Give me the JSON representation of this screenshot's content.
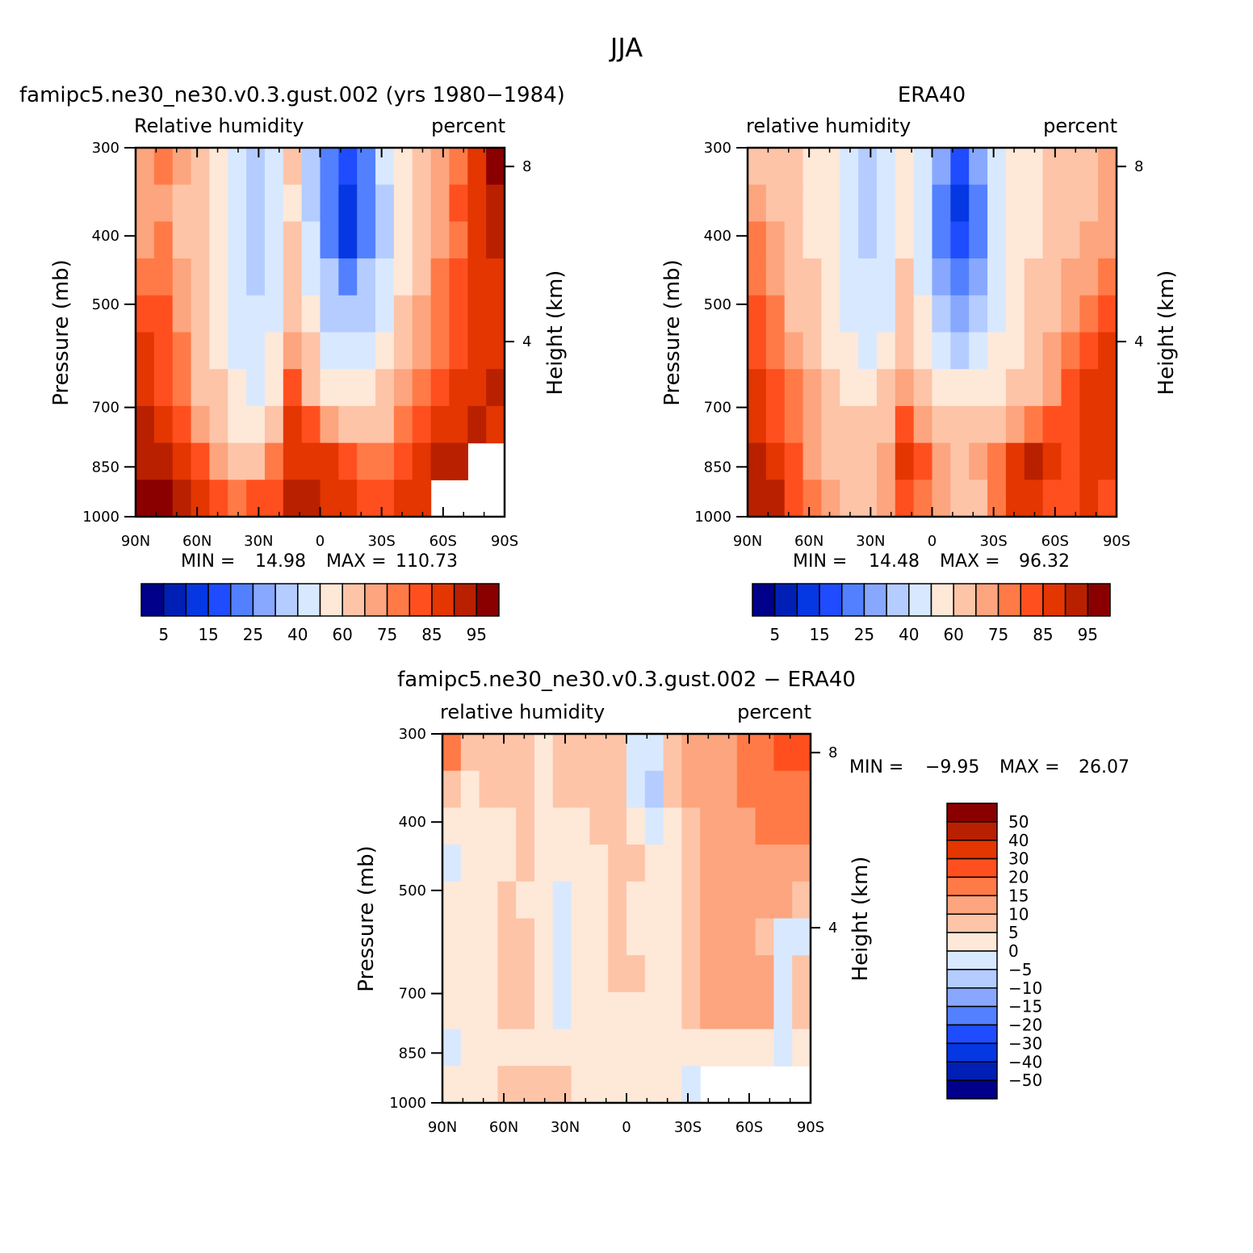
{
  "figure_title": "JJA",
  "chart_data": [
    {
      "id": "model",
      "type": "heatmap",
      "title": "famipc5.ne30_ne30.v0.3.gust.002 (yrs 1980−1984)",
      "left_label": "Relative humidity",
      "right_label": "percent",
      "xlabel": "",
      "ylabel": "Pressure (mb)",
      "y2label": "Height (km)",
      "x_ticks": [
        "90N",
        "60N",
        "30N",
        "0",
        "30S",
        "60S",
        "90S"
      ],
      "y_ticks": [
        300,
        400,
        500,
        700,
        850,
        1000
      ],
      "y2_ticks": [
        8,
        4
      ],
      "y_scale": "log",
      "stats": {
        "min_label": "MIN =",
        "min": "14.98",
        "max_label": "MAX =",
        "max": "110.73"
      },
      "grid": [
        [
          70,
          75,
          70,
          62,
          52,
          40,
          38,
          45,
          60,
          35,
          22,
          15,
          22,
          40,
          55,
          65,
          72,
          78,
          85,
          96
        ],
        [
          70,
          72,
          68,
          62,
          50,
          40,
          32,
          40,
          58,
          35,
          20,
          12,
          20,
          38,
          55,
          65,
          72,
          80,
          88,
          92
        ],
        [
          72,
          75,
          68,
          60,
          50,
          40,
          38,
          42,
          60,
          40,
          22,
          14,
          22,
          38,
          55,
          65,
          72,
          78,
          85,
          90
        ],
        [
          76,
          75,
          70,
          62,
          52,
          42,
          38,
          45,
          62,
          45,
          30,
          22,
          30,
          42,
          58,
          68,
          75,
          80,
          86,
          88
        ],
        [
          80,
          82,
          74,
          66,
          56,
          45,
          40,
          48,
          65,
          52,
          38,
          30,
          36,
          48,
          62,
          70,
          76,
          82,
          86,
          88
        ],
        [
          86,
          84,
          76,
          68,
          58,
          48,
          42,
          52,
          72,
          60,
          48,
          40,
          45,
          55,
          66,
          74,
          78,
          84,
          86,
          88
        ],
        [
          88,
          82,
          78,
          68,
          60,
          52,
          48,
          58,
          80,
          68,
          56,
          52,
          55,
          60,
          70,
          76,
          80,
          85,
          86,
          90
        ],
        [
          90,
          86,
          82,
          72,
          64,
          56,
          55,
          68,
          85,
          80,
          72,
          68,
          66,
          68,
          75,
          82,
          86,
          88,
          90,
          86
        ],
        [
          94,
          90,
          86,
          80,
          72,
          66,
          66,
          76,
          88,
          88,
          86,
          82,
          76,
          78,
          84,
          88,
          92,
          90,
          null,
          null
        ],
        [
          98,
          96,
          90,
          86,
          80,
          78,
          80,
          84,
          90,
          90,
          88,
          86,
          82,
          80,
          86,
          88,
          null,
          null,
          null,
          null
        ]
      ]
    },
    {
      "id": "obs",
      "type": "heatmap",
      "title": "ERA40",
      "left_label": "relative humidity",
      "right_label": "percent",
      "xlabel": "",
      "ylabel": "Pressure (mb)",
      "y2label": "Height (km)",
      "x_ticks": [
        "90N",
        "60N",
        "30N",
        "0",
        "30S",
        "60S",
        "90S"
      ],
      "y_ticks": [
        300,
        400,
        500,
        700,
        850,
        1000
      ],
      "y2_ticks": [
        8,
        4
      ],
      "y_scale": "log",
      "stats": {
        "min_label": "MIN =",
        "min": "14.48",
        "max_label": "MAX =",
        "max": "96.32"
      },
      "grid": [
        [
          62,
          62,
          60,
          58,
          52,
          45,
          38,
          40,
          55,
          42,
          25,
          18,
          28,
          45,
          52,
          58,
          62,
          66,
          68,
          70
        ],
        [
          72,
          68,
          62,
          58,
          52,
          42,
          35,
          40,
          56,
          40,
          22,
          14,
          24,
          42,
          52,
          58,
          62,
          66,
          68,
          70
        ],
        [
          76,
          70,
          64,
          58,
          52,
          42,
          38,
          42,
          58,
          42,
          24,
          15,
          24,
          42,
          52,
          58,
          64,
          68,
          70,
          72
        ],
        [
          78,
          72,
          66,
          60,
          54,
          44,
          40,
          45,
          60,
          45,
          28,
          20,
          28,
          44,
          54,
          60,
          66,
          70,
          74,
          76
        ],
        [
          80,
          76,
          68,
          62,
          56,
          46,
          42,
          48,
          62,
          50,
          34,
          28,
          32,
          46,
          56,
          62,
          68,
          72,
          78,
          80
        ],
        [
          82,
          78,
          72,
          66,
          58,
          50,
          46,
          52,
          66,
          56,
          42,
          38,
          40,
          50,
          58,
          64,
          70,
          76,
          82,
          86
        ],
        [
          86,
          82,
          76,
          70,
          62,
          56,
          54,
          60,
          72,
          64,
          54,
          50,
          52,
          56,
          62,
          68,
          74,
          80,
          88,
          88
        ],
        [
          88,
          84,
          78,
          72,
          66,
          62,
          62,
          68,
          80,
          74,
          66,
          62,
          62,
          66,
          72,
          78,
          82,
          84,
          88,
          86
        ],
        [
          92,
          86,
          80,
          74,
          68,
          66,
          66,
          72,
          86,
          80,
          72,
          66,
          70,
          76,
          86,
          90,
          86,
          82,
          88,
          86
        ],
        [
          94,
          90,
          84,
          78,
          72,
          68,
          68,
          72,
          82,
          78,
          70,
          62,
          68,
          76,
          86,
          88,
          84,
          80,
          86,
          84
        ]
      ]
    },
    {
      "id": "diff",
      "type": "heatmap",
      "title": "famipc5.ne30_ne30.v0.3.gust.002 − ERA40",
      "left_label": "relative humidity",
      "right_label": "percent",
      "xlabel": "",
      "ylabel": "Pressure (mb)",
      "y2label": "Height (km)",
      "x_ticks": [
        "90N",
        "60N",
        "30N",
        "0",
        "30S",
        "60S",
        "90S"
      ],
      "y_ticks": [
        300,
        400,
        500,
        700,
        850,
        1000
      ],
      "y2_ticks": [
        8,
        4
      ],
      "y_scale": "log",
      "stats": {
        "min_label": "MIN =",
        "min": "−9.95",
        "max_label": "MAX =",
        "max": "26.07"
      },
      "grid": [
        [
          16,
          8,
          6,
          6,
          6,
          4,
          6,
          6,
          6,
          6,
          -2,
          -2,
          6,
          10,
          12,
          14,
          16,
          18,
          20,
          22
        ],
        [
          6,
          4,
          6,
          6,
          6,
          4,
          6,
          6,
          6,
          6,
          -3,
          -6,
          6,
          12,
          12,
          14,
          16,
          18,
          18,
          18
        ],
        [
          2,
          2,
          2,
          4,
          6,
          4,
          2,
          2,
          6,
          8,
          2,
          -2,
          4,
          8,
          12,
          12,
          14,
          16,
          16,
          16
        ],
        [
          -1,
          2,
          2,
          4,
          6,
          4,
          2,
          2,
          4,
          8,
          6,
          2,
          4,
          8,
          12,
          12,
          14,
          14,
          14,
          14
        ],
        [
          0,
          2,
          2,
          6,
          4,
          2,
          -1,
          2,
          4,
          6,
          4,
          2,
          4,
          8,
          12,
          12,
          12,
          10,
          10,
          8
        ],
        [
          2,
          4,
          2,
          6,
          6,
          2,
          -2,
          2,
          4,
          6,
          4,
          2,
          2,
          8,
          12,
          12,
          12,
          8,
          -2,
          -2
        ],
        [
          2,
          4,
          2,
          6,
          6,
          2,
          -2,
          2,
          4,
          6,
          6,
          2,
          2,
          8,
          14,
          14,
          12,
          10,
          -2,
          6
        ],
        [
          2,
          4,
          2,
          6,
          6,
          0,
          -1,
          2,
          2,
          2,
          4,
          2,
          2,
          6,
          12,
          12,
          10,
          10,
          -2,
          6
        ],
        [
          -2,
          2,
          2,
          2,
          2,
          2,
          2,
          2,
          2,
          4,
          2,
          2,
          2,
          2,
          4,
          4,
          4,
          2,
          -2,
          2
        ],
        [
          2,
          2,
          2,
          6,
          8,
          8,
          8,
          4,
          2,
          2,
          2,
          2,
          2,
          -1,
          null,
          null,
          null,
          null,
          null,
          null
        ]
      ]
    }
  ],
  "colorbar_rh": {
    "colors": [
      "#00008b",
      "#0020b5",
      "#0537e3",
      "#1f4cff",
      "#5280ff",
      "#88a8ff",
      "#b4ccff",
      "#d8e9ff",
      "#fee8d8",
      "#fdc4a8",
      "#fca57e",
      "#ff7a47",
      "#ff4f1f",
      "#e33600",
      "#b82000",
      "#8a0000"
    ],
    "labels": [
      "5",
      "15",
      "25",
      "40",
      "60",
      "75",
      "85",
      "95"
    ]
  },
  "colorbar_diff": {
    "colors": [
      "#8a0000",
      "#b82000",
      "#e33600",
      "#ff4f1f",
      "#ff7a47",
      "#fca57e",
      "#fdc4a8",
      "#fee8d8",
      "#d8e9ff",
      "#b4ccff",
      "#88a8ff",
      "#5280ff",
      "#1f4cff",
      "#0537e3",
      "#0020b5",
      "#00008b"
    ],
    "labels": [
      "50",
      "40",
      "30",
      "20",
      "15",
      "10",
      "5",
      "0",
      "−5",
      "−10",
      "−15",
      "−20",
      "−30",
      "−40",
      "−50"
    ]
  },
  "rh_levels": [
    5,
    10,
    15,
    20,
    25,
    30,
    40,
    50,
    60,
    70,
    75,
    80,
    85,
    90,
    95
  ],
  "diff_levels": [
    -50,
    -40,
    -30,
    -20,
    -15,
    -10,
    -5,
    0,
    5,
    10,
    15,
    20,
    30,
    40,
    50
  ]
}
